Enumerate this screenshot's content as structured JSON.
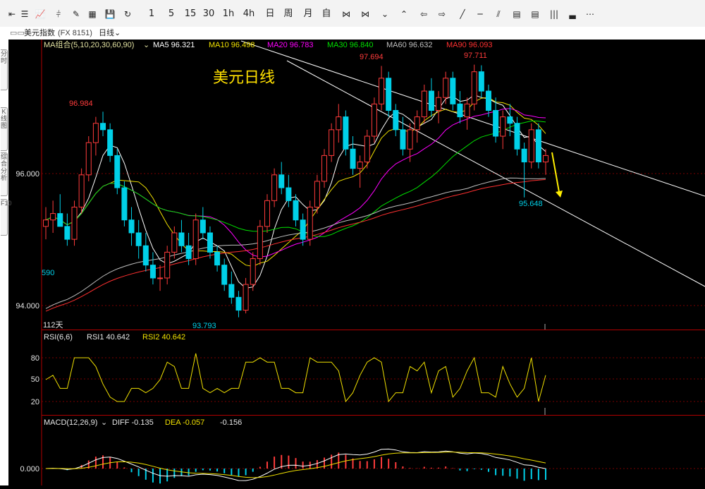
{
  "toolbar": {
    "items": [
      {
        "name": "back-icon",
        "glyph": "⇤"
      },
      {
        "name": "list-icon",
        "glyph": "☰"
      },
      {
        "name": "line-chart-icon",
        "glyph": "📈"
      },
      {
        "name": "candlestick-icon",
        "glyph": "⫩"
      },
      {
        "name": "draw-tool-icon",
        "glyph": "✎"
      },
      {
        "name": "data-window-icon",
        "glyph": "▦"
      },
      {
        "name": "save-icon",
        "glyph": "💾"
      },
      {
        "name": "refresh-icon",
        "glyph": "↻"
      },
      {
        "name": "period-1m",
        "label": "1"
      },
      {
        "name": "period-5m",
        "label": "5"
      },
      {
        "name": "period-15m",
        "label": "15"
      },
      {
        "name": "period-30m",
        "label": "30"
      },
      {
        "name": "period-1h",
        "label": "1h"
      },
      {
        "name": "period-4h",
        "label": "4h"
      },
      {
        "name": "period-day",
        "label": "日"
      },
      {
        "name": "period-week",
        "label": "周"
      },
      {
        "name": "period-month",
        "label": "月"
      },
      {
        "name": "period-custom",
        "label": "自"
      },
      {
        "name": "compress-icon",
        "glyph": "⋈"
      },
      {
        "name": "move-left-icon",
        "glyph": "⋈"
      },
      {
        "name": "collapse-icon",
        "glyph": "⌄"
      },
      {
        "name": "expand-icon",
        "glyph": "⌃"
      },
      {
        "name": "scroll-left-icon",
        "glyph": "⇦"
      },
      {
        "name": "scroll-right-icon",
        "glyph": "⇨"
      },
      {
        "name": "trendline-icon",
        "glyph": "╱"
      },
      {
        "name": "hline-icon",
        "glyph": "─"
      },
      {
        "name": "parallel-lines-icon",
        "glyph": "⫽"
      },
      {
        "name": "text-tool-icon",
        "glyph": "▤"
      },
      {
        "name": "table-icon",
        "glyph": "▤"
      },
      {
        "name": "bars-icon",
        "glyph": "|||"
      },
      {
        "name": "volume-icon",
        "glyph": "▃"
      },
      {
        "name": "more-icon",
        "glyph": "⋯"
      }
    ]
  },
  "titlebar": {
    "symbol": "美元指数",
    "code": "(FX 8151)",
    "period": "日线"
  },
  "left_tabs": [
    "分时",
    "K线图",
    "综合分析",
    "F10"
  ],
  "main": {
    "ma_header": {
      "group": "MA组合(5,10,20,30,60,90)",
      "ma5": "MA5 96.321",
      "ma10": "MA10 96.498",
      "ma20": "MA20 96.783",
      "ma30": "MA30 96.840",
      "ma60": "MA60 96.632",
      "ma90": "MA90 96.093"
    },
    "annotation": "美元日线",
    "labels": {
      "high_left": "96.984",
      "high_mid": "97.694",
      "high_right": "97.711",
      "low_left": "93.793",
      "low_right": "95.648",
      "left_edge": "590",
      "days": "112天"
    },
    "axis": [
      "96.000",
      "94.000"
    ]
  },
  "rsi": {
    "title": "RSI(6,6)",
    "rsi1": "RSI1 40.642",
    "rsi2": "RSI2 40.642",
    "axis": [
      "80",
      "50",
      "20"
    ]
  },
  "macd": {
    "title": "MACD(12,26,9)",
    "diff": "DIFF -0.135",
    "dea": "DEA -0.057",
    "macd": "-0.156",
    "axis": [
      "0.000"
    ]
  },
  "colors": {
    "up": "#ff3b3b",
    "down": "#00d0e8",
    "ma5": "#ffffff",
    "ma10": "#f0e000",
    "ma20": "#ff00ff",
    "ma30": "#00e000",
    "ma60": "#bfbfbf",
    "ma90": "#ff3030",
    "arrow": "#ffee00",
    "annotation": "#ffe000"
  },
  "chart_data": {
    "type": "candlestick",
    "title": "美元指数 (FX 8151) 日线",
    "ylim": [
      93.6,
      98.1
    ],
    "candles": [
      [
        95.2,
        95.5,
        95.0,
        95.3
      ],
      [
        95.3,
        95.6,
        95.1,
        95.4
      ],
      [
        95.4,
        95.7,
        95.2,
        95.2
      ],
      [
        95.2,
        95.4,
        94.9,
        95.0
      ],
      [
        95.0,
        95.6,
        94.9,
        95.5
      ],
      [
        95.5,
        96.1,
        95.4,
        96.0
      ],
      [
        96.0,
        96.6,
        95.9,
        96.5
      ],
      [
        96.5,
        96.9,
        96.3,
        96.8
      ],
      [
        96.8,
        96.98,
        96.6,
        96.7
      ],
      [
        96.7,
        96.8,
        96.2,
        96.3
      ],
      [
        96.3,
        96.4,
        95.7,
        95.8
      ],
      [
        95.8,
        95.9,
        95.2,
        95.3
      ],
      [
        95.3,
        95.5,
        94.9,
        95.1
      ],
      [
        95.1,
        95.3,
        94.7,
        94.9
      ],
      [
        94.9,
        95.1,
        94.5,
        94.6
      ],
      [
        94.6,
        94.8,
        94.3,
        94.4
      ],
      [
        94.4,
        94.6,
        94.2,
        94.4
      ],
      [
        94.4,
        94.9,
        94.3,
        94.8
      ],
      [
        94.8,
        95.2,
        94.7,
        95.1
      ],
      [
        95.1,
        95.3,
        94.8,
        94.9
      ],
      [
        94.9,
        95.1,
        94.6,
        94.7
      ],
      [
        94.7,
        95.4,
        94.6,
        95.3
      ],
      [
        95.3,
        95.5,
        95.0,
        95.1
      ],
      [
        95.1,
        95.2,
        94.7,
        94.8
      ],
      [
        94.8,
        94.9,
        94.5,
        94.6
      ],
      [
        94.6,
        94.7,
        94.2,
        94.3
      ],
      [
        94.3,
        94.5,
        94.0,
        94.1
      ],
      [
        94.1,
        94.2,
        93.79,
        93.9
      ],
      [
        93.9,
        94.4,
        93.85,
        94.3
      ],
      [
        94.3,
        94.8,
        94.2,
        94.7
      ],
      [
        94.7,
        95.3,
        94.6,
        95.2
      ],
      [
        95.2,
        95.7,
        95.1,
        95.6
      ],
      [
        95.6,
        96.1,
        95.5,
        96.0
      ],
      [
        96.0,
        96.2,
        95.7,
        95.8
      ],
      [
        95.8,
        96.0,
        95.5,
        95.6
      ],
      [
        95.6,
        95.7,
        95.2,
        95.3
      ],
      [
        95.3,
        95.4,
        94.9,
        95.0
      ],
      [
        95.0,
        95.6,
        94.9,
        95.5
      ],
      [
        95.5,
        96.0,
        95.4,
        95.9
      ],
      [
        95.9,
        96.4,
        95.8,
        96.3
      ],
      [
        96.3,
        96.8,
        96.2,
        96.7
      ],
      [
        96.7,
        97.1,
        96.5,
        96.9
      ],
      [
        96.9,
        97.0,
        96.3,
        96.4
      ],
      [
        96.4,
        96.6,
        96.0,
        96.1
      ],
      [
        96.1,
        96.3,
        95.8,
        96.2
      ],
      [
        96.2,
        96.7,
        96.1,
        96.6
      ],
      [
        96.6,
        97.2,
        96.5,
        97.1
      ],
      [
        97.1,
        97.69,
        97.0,
        97.5
      ],
      [
        97.5,
        97.6,
        96.9,
        97.0
      ],
      [
        97.0,
        97.1,
        96.6,
        96.7
      ],
      [
        96.7,
        96.9,
        96.3,
        96.4
      ],
      [
        96.4,
        96.8,
        96.2,
        96.7
      ],
      [
        96.7,
        97.0,
        96.5,
        96.9
      ],
      [
        96.9,
        97.4,
        96.8,
        97.3
      ],
      [
        97.3,
        97.5,
        96.9,
        97.0
      ],
      [
        97.0,
        97.3,
        96.8,
        97.2
      ],
      [
        97.2,
        97.6,
        97.1,
        97.5
      ],
      [
        97.5,
        97.6,
        97.0,
        97.1
      ],
      [
        97.1,
        97.3,
        96.8,
        96.9
      ],
      [
        96.9,
        97.2,
        96.7,
        97.1
      ],
      [
        97.1,
        97.71,
        97.0,
        97.6
      ],
      [
        97.6,
        97.7,
        97.2,
        97.3
      ],
      [
        97.3,
        97.4,
        96.9,
        97.0
      ],
      [
        97.0,
        97.2,
        96.5,
        96.6
      ],
      [
        96.6,
        97.0,
        96.4,
        96.9
      ],
      [
        96.9,
        97.1,
        96.6,
        96.8
      ],
      [
        96.8,
        96.9,
        96.3,
        96.4
      ],
      [
        96.4,
        96.5,
        95.65,
        96.2
      ],
      [
        96.2,
        96.8,
        96.1,
        96.7
      ],
      [
        96.7,
        96.8,
        96.1,
        96.2
      ],
      [
        96.2,
        96.4,
        96.0,
        96.3
      ]
    ]
  }
}
